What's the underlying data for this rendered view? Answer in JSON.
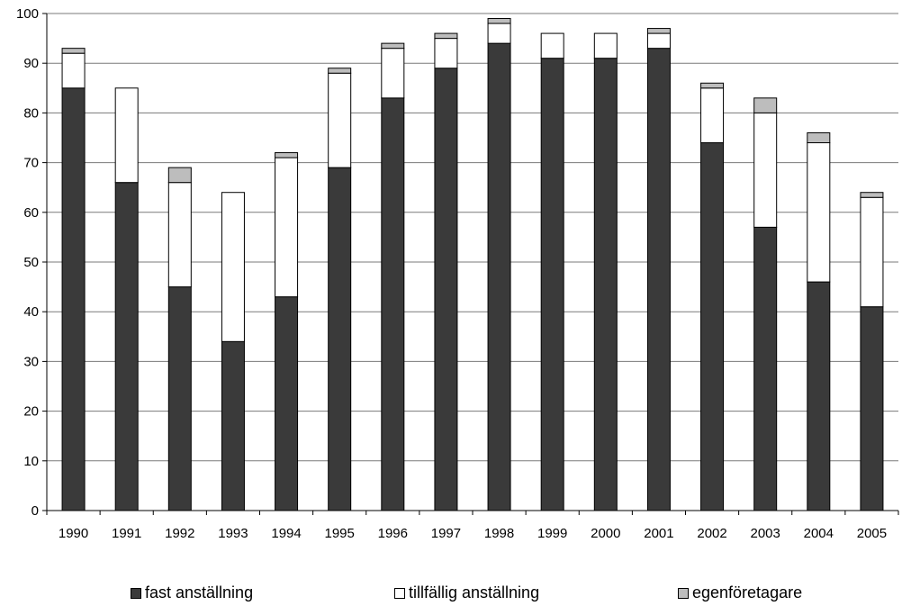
{
  "chart_data": {
    "type": "bar",
    "stacked": true,
    "title": "",
    "xlabel": "",
    "ylabel": "",
    "ylim": [
      0,
      100
    ],
    "yticks": [
      0,
      10,
      20,
      30,
      40,
      50,
      60,
      70,
      80,
      90,
      100
    ],
    "grid": true,
    "legend_position": "bottom",
    "categories": [
      "1990",
      "1991",
      "1992",
      "1993",
      "1994",
      "1995",
      "1996",
      "1997",
      "1998",
      "1999",
      "2000",
      "2001",
      "2002",
      "2003",
      "2004",
      "2005"
    ],
    "series": [
      {
        "name": "fast anställning",
        "color": "#3a3a3a",
        "values": [
          85,
          66,
          45,
          34,
          43,
          69,
          83,
          89,
          94,
          91,
          91,
          93,
          74,
          57,
          46,
          41
        ]
      },
      {
        "name": "tillfällig anställning",
        "color": "#ffffff",
        "values": [
          7,
          19,
          21,
          30,
          28,
          19,
          10,
          6,
          4,
          5,
          5,
          3,
          11,
          23,
          28,
          22
        ]
      },
      {
        "name": "egenföretagare",
        "color": "#bdbdbd",
        "values": [
          1,
          0,
          3,
          0,
          1,
          1,
          1,
          1,
          1,
          0,
          0,
          1,
          1,
          3,
          2,
          1
        ]
      }
    ]
  }
}
